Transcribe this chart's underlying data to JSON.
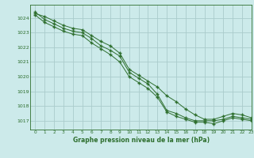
{
  "title": "Graphe pression niveau de la mer (hPa)",
  "bg_color": "#cceaea",
  "grid_color": "#aacccc",
  "line_color": "#2d6e2d",
  "marker_color": "#2d6e2d",
  "xlim": [
    -0.5,
    23
  ],
  "ylim": [
    1016.4,
    1024.9
  ],
  "yticks": [
    1017,
    1018,
    1019,
    1020,
    1021,
    1022,
    1023,
    1024
  ],
  "xticks": [
    0,
    1,
    2,
    3,
    4,
    5,
    6,
    7,
    8,
    9,
    10,
    11,
    12,
    13,
    14,
    15,
    16,
    17,
    18,
    19,
    20,
    21,
    22,
    23
  ],
  "series": [
    [
      1024.4,
      1023.9,
      1023.6,
      1023.3,
      1023.1,
      1023.0,
      1022.6,
      1022.1,
      1021.8,
      1021.4,
      1020.3,
      1019.9,
      1019.5,
      1018.8,
      1017.7,
      1017.5,
      1017.2,
      1017.0,
      1017.0,
      1017.0,
      1017.1,
      1017.3,
      1017.2,
      1017.1
    ],
    [
      1024.3,
      1024.1,
      1023.8,
      1023.5,
      1023.3,
      1023.2,
      1022.8,
      1022.4,
      1022.1,
      1021.6,
      1020.5,
      1020.1,
      1019.7,
      1019.3,
      1018.7,
      1018.3,
      1017.8,
      1017.4,
      1017.1,
      1017.1,
      1017.3,
      1017.5,
      1017.4,
      1017.2
    ],
    [
      1024.2,
      1023.7,
      1023.4,
      1023.1,
      1022.9,
      1022.8,
      1022.3,
      1021.9,
      1021.5,
      1021.0,
      1020.0,
      1019.6,
      1019.2,
      1018.6,
      1017.6,
      1017.3,
      1017.1,
      1016.9,
      1016.9,
      1016.8,
      1017.0,
      1017.2,
      1017.1,
      1017.0
    ]
  ]
}
